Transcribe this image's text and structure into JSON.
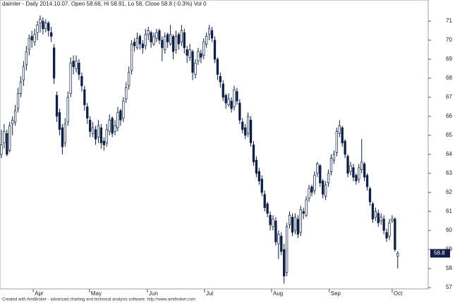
{
  "chart_data": {
    "type": "candlestick",
    "title": "daimler - Daily 2014.10.07. Open 58.66, Hi 58.91, Lo 58, Close 58.8 (-0.3%) Vol 0",
    "footer": "Created with AmiBroker - advanced charting and technical analysis software. http://www.amibroker.com",
    "ylim": [
      56.93,
      72.11
    ],
    "yticks": [
      57,
      58,
      59,
      60,
      61,
      62,
      63,
      64,
      65,
      66,
      67,
      68,
      69,
      70,
      71
    ],
    "xlim": [
      -0.5,
      154
    ],
    "xticks": [
      {
        "value": 11.5,
        "label": "Apr"
      },
      {
        "value": 31.8,
        "label": "May"
      },
      {
        "value": 52.7,
        "label": "Jun"
      },
      {
        "value": 73.3,
        "label": "Jul"
      },
      {
        "value": 97.5,
        "label": "Aug"
      },
      {
        "value": 118.3,
        "label": "Sep"
      },
      {
        "value": 141,
        "label": "Oct"
      }
    ],
    "up_color": "#ffffff",
    "down_color": "#0d1f44",
    "grid": false,
    "ohlc": [
      [
        64.0,
        65.3,
        63.8,
        64.5
      ],
      [
        64.6,
        65.6,
        64.3,
        65.2
      ],
      [
        65.1,
        65.3,
        63.9,
        64.0
      ],
      [
        64.2,
        65.7,
        64.1,
        65.5
      ],
      [
        65.6,
        66.0,
        65.0,
        65.8
      ],
      [
        65.7,
        66.6,
        65.5,
        66.3
      ],
      [
        66.4,
        67.5,
        66.2,
        67.2
      ],
      [
        67.2,
        68.1,
        67.0,
        67.8
      ],
      [
        67.9,
        68.9,
        67.6,
        68.6
      ],
      [
        68.7,
        69.7,
        68.4,
        69.4
      ],
      [
        69.5,
        70.3,
        69.2,
        70.1
      ],
      [
        70.2,
        70.5,
        69.6,
        70.0
      ],
      [
        69.9,
        70.6,
        69.7,
        70.3
      ],
      [
        70.4,
        71.0,
        70.0,
        70.8
      ],
      [
        70.9,
        71.3,
        70.4,
        71.1
      ],
      [
        71.0,
        71.2,
        70.3,
        70.6
      ],
      [
        70.6,
        71.1,
        70.4,
        70.9
      ],
      [
        70.9,
        71.0,
        70.2,
        70.5
      ],
      [
        70.4,
        70.7,
        69.9,
        70.2
      ],
      [
        69.6,
        69.8,
        67.7,
        68.0
      ],
      [
        67.1,
        67.3,
        65.7,
        66.0
      ],
      [
        66.2,
        66.4,
        65.0,
        65.3
      ],
      [
        65.4,
        65.6,
        64.0,
        64.4
      ],
      [
        64.6,
        65.9,
        64.4,
        65.6
      ],
      [
        65.7,
        67.3,
        65.5,
        67.0
      ],
      [
        67.2,
        69.1,
        67.0,
        68.8
      ],
      [
        68.9,
        69.2,
        68.2,
        68.6
      ],
      [
        68.5,
        69.2,
        68.3,
        68.9
      ],
      [
        68.8,
        69.0,
        67.9,
        68.2
      ],
      [
        68.1,
        68.3,
        67.3,
        67.6
      ],
      [
        67.4,
        67.6,
        66.3,
        66.6
      ],
      [
        66.5,
        66.7,
        65.6,
        65.9
      ],
      [
        65.8,
        66.0,
        64.9,
        65.2
      ],
      [
        65.1,
        65.7,
        64.9,
        65.4
      ],
      [
        65.3,
        65.5,
        64.5,
        64.8
      ],
      [
        64.9,
        65.8,
        64.6,
        65.5
      ],
      [
        65.4,
        65.6,
        64.3,
        64.6
      ],
      [
        64.7,
        64.9,
        64.2,
        64.5
      ],
      [
        64.6,
        65.6,
        64.4,
        65.3
      ],
      [
        65.2,
        66.1,
        65.0,
        65.8
      ],
      [
        65.9,
        66.0,
        64.9,
        65.1
      ],
      [
        65.2,
        65.8,
        65.0,
        65.5
      ],
      [
        65.4,
        66.5,
        65.2,
        66.2
      ],
      [
        66.3,
        66.4,
        65.5,
        65.8
      ],
      [
        65.9,
        67.0,
        65.7,
        66.8
      ],
      [
        66.9,
        67.8,
        66.7,
        67.5
      ],
      [
        67.6,
        68.6,
        67.4,
        68.3
      ],
      [
        68.4,
        70.0,
        68.2,
        69.8
      ],
      [
        69.9,
        70.1,
        69.4,
        69.7
      ],
      [
        69.6,
        70.4,
        69.5,
        70.1
      ],
      [
        70.2,
        70.3,
        69.5,
        69.8
      ],
      [
        69.8,
        70.0,
        69.3,
        69.6
      ],
      [
        69.7,
        70.6,
        69.5,
        70.3
      ],
      [
        70.3,
        70.7,
        70.0,
        70.5
      ],
      [
        70.4,
        70.5,
        69.6,
        69.9
      ],
      [
        69.8,
        70.4,
        69.7,
        70.2
      ],
      [
        70.1,
        70.6,
        69.9,
        70.4
      ],
      [
        70.5,
        70.6,
        69.8,
        70.0
      ],
      [
        70.0,
        70.2,
        68.9,
        69.6
      ],
      [
        69.5,
        70.4,
        69.3,
        70.2
      ],
      [
        70.3,
        70.4,
        69.6,
        69.9
      ],
      [
        69.8,
        70.8,
        69.7,
        70.3
      ],
      [
        70.2,
        70.3,
        69.0,
        69.4
      ],
      [
        69.5,
        70.5,
        69.3,
        70.2
      ],
      [
        70.3,
        70.4,
        69.5,
        69.8
      ],
      [
        69.9,
        70.8,
        69.7,
        70.5
      ],
      [
        70.4,
        70.6,
        69.3,
        69.6
      ],
      [
        69.5,
        69.7,
        68.8,
        69.2
      ],
      [
        69.1,
        69.8,
        68.9,
        69.5
      ],
      [
        69.4,
        69.5,
        67.9,
        68.3
      ],
      [
        68.2,
        69.0,
        68.0,
        68.8
      ],
      [
        68.9,
        69.6,
        68.7,
        69.4
      ],
      [
        69.3,
        69.5,
        68.8,
        69.1
      ],
      [
        69.2,
        70.1,
        69.0,
        69.9
      ],
      [
        69.8,
        70.4,
        69.6,
        70.2
      ],
      [
        70.3,
        70.8,
        70.0,
        70.6
      ],
      [
        70.5,
        70.7,
        69.9,
        70.1
      ],
      [
        70.0,
        70.2,
        68.8,
        69.0
      ],
      [
        69.0,
        69.1,
        67.9,
        68.2
      ],
      [
        68.1,
        68.3,
        67.5,
        67.8
      ],
      [
        67.7,
        67.9,
        66.8,
        67.0
      ],
      [
        67.1,
        67.2,
        66.4,
        66.7
      ],
      [
        66.6,
        67.2,
        66.5,
        66.9
      ],
      [
        66.8,
        67.0,
        66.2,
        66.4
      ],
      [
        66.5,
        67.6,
        66.3,
        67.4
      ],
      [
        67.3,
        67.5,
        66.6,
        66.8
      ],
      [
        66.7,
        66.9,
        65.6,
        65.8
      ],
      [
        65.7,
        65.9,
        65.1,
        65.3
      ],
      [
        65.4,
        65.6,
        64.8,
        65.0
      ],
      [
        65.1,
        66.2,
        64.9,
        66.0
      ],
      [
        65.8,
        66.0,
        64.4,
        64.6
      ],
      [
        64.5,
        64.7,
        63.4,
        63.6
      ],
      [
        63.7,
        63.9,
        62.8,
        63.0
      ],
      [
        63.1,
        63.3,
        62.4,
        62.6
      ],
      [
        62.7,
        62.9,
        61.8,
        62.0
      ],
      [
        61.9,
        62.1,
        61.0,
        61.2
      ],
      [
        61.4,
        61.5,
        60.7,
        60.9
      ],
      [
        60.8,
        61.0,
        60.0,
        60.3
      ],
      [
        60.2,
        60.8,
        60.0,
        60.6
      ],
      [
        60.5,
        60.7,
        59.2,
        59.4
      ],
      [
        59.3,
        60.0,
        58.5,
        59.8
      ],
      [
        59.7,
        59.9,
        58.7,
        58.9
      ],
      [
        59.0,
        59.3,
        57.2,
        57.6
      ],
      [
        57.8,
        60.4,
        57.6,
        60.2
      ],
      [
        60.3,
        61.0,
        60.1,
        60.8
      ],
      [
        60.7,
        60.9,
        59.7,
        59.9
      ],
      [
        60.0,
        60.9,
        59.8,
        60.7
      ],
      [
        60.6,
        60.8,
        59.6,
        59.8
      ],
      [
        59.9,
        61.3,
        59.7,
        61.1
      ],
      [
        61.0,
        61.2,
        60.6,
        60.9
      ],
      [
        60.8,
        61.8,
        60.7,
        61.6
      ],
      [
        61.7,
        62.4,
        61.5,
        62.2
      ],
      [
        62.3,
        62.4,
        61.8,
        62.0
      ],
      [
        62.1,
        63.1,
        61.9,
        62.9
      ],
      [
        63.0,
        63.6,
        62.8,
        63.5
      ],
      [
        63.4,
        63.5,
        62.3,
        62.5
      ],
      [
        62.6,
        62.7,
        61.7,
        61.9
      ],
      [
        61.8,
        62.6,
        61.6,
        62.4
      ],
      [
        62.5,
        63.2,
        62.3,
        63.0
      ],
      [
        63.1,
        64.0,
        62.9,
        63.8
      ],
      [
        63.7,
        64.2,
        63.5,
        64.0
      ],
      [
        64.1,
        65.4,
        63.9,
        65.2
      ],
      [
        65.1,
        65.8,
        64.9,
        65.5
      ],
      [
        65.4,
        65.5,
        64.4,
        64.6
      ],
      [
        64.7,
        64.8,
        63.8,
        64.0
      ],
      [
        63.9,
        64.0,
        62.8,
        63.0
      ],
      [
        63.1,
        63.6,
        62.9,
        63.4
      ],
      [
        63.3,
        63.5,
        62.6,
        62.8
      ],
      [
        62.9,
        63.0,
        62.4,
        62.6
      ],
      [
        62.7,
        63.5,
        62.5,
        63.3
      ],
      [
        63.2,
        64.8,
        63.0,
        63.6
      ],
      [
        63.5,
        63.6,
        62.6,
        62.8
      ],
      [
        62.9,
        63.0,
        62.1,
        62.3
      ],
      [
        62.2,
        62.3,
        61.3,
        61.5
      ],
      [
        61.4,
        61.5,
        60.4,
        60.6
      ],
      [
        60.7,
        61.2,
        60.5,
        61.0
      ],
      [
        60.9,
        61.1,
        60.2,
        60.4
      ],
      [
        60.5,
        60.9,
        60.3,
        60.7
      ],
      [
        60.6,
        60.8,
        59.8,
        60.0
      ],
      [
        59.9,
        60.1,
        59.4,
        59.6
      ],
      [
        59.7,
        60.6,
        59.5,
        60.4
      ],
      [
        60.5,
        60.8,
        60.4,
        60.6
      ],
      [
        60.6,
        60.7,
        58.9,
        59.0
      ],
      [
        58.66,
        58.91,
        58,
        58.8
      ]
    ]
  }
}
